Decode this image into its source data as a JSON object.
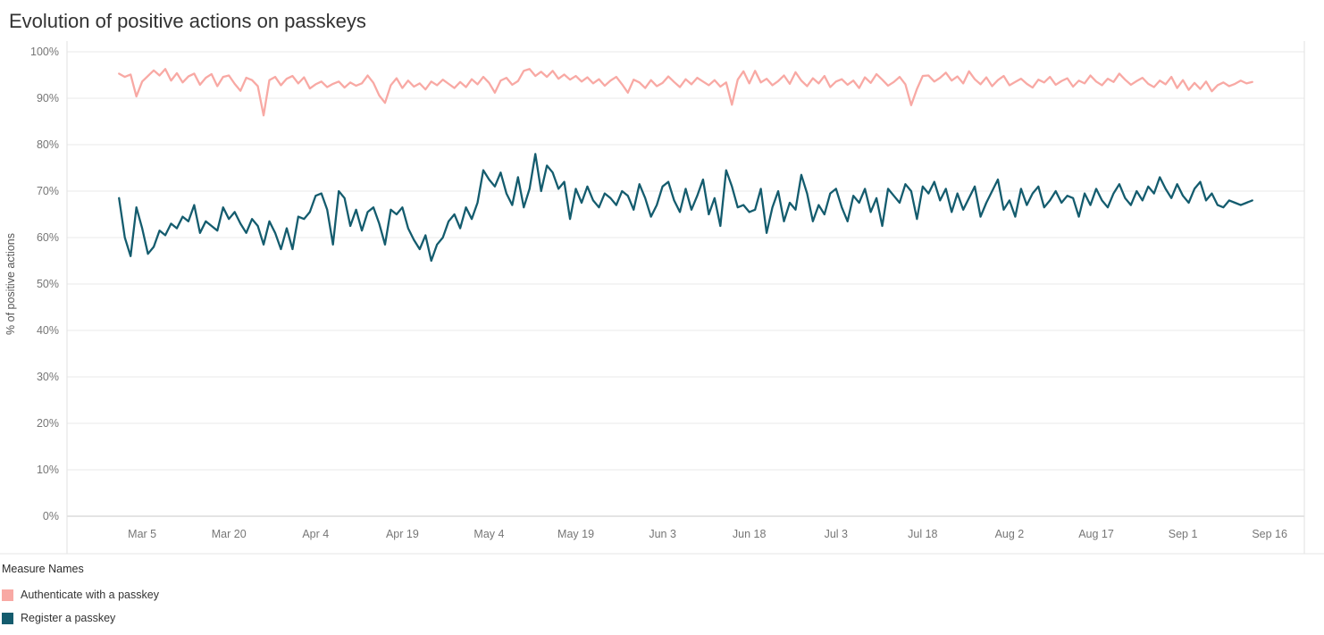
{
  "page": {
    "title": "Evolution of positive actions on passkeys"
  },
  "legend": {
    "title": "Measure Names",
    "items": [
      {
        "label": "Authenticate with a passkey",
        "color": "#f8a9a4"
      },
      {
        "label": "Register a passkey",
        "color": "#145c6e"
      }
    ]
  },
  "chart_data": {
    "type": "line",
    "title": "Evolution of positive actions on passkeys",
    "xlabel": "",
    "ylabel": "% of positive actions",
    "ylim": [
      0,
      100
    ],
    "y_tick_step": 10,
    "y_tick_suffix": "%",
    "grid": "horizontal",
    "legend_position": "bottom-left",
    "x_unit": "daily points, day index 0 = Mar 1",
    "x_ticks": [
      {
        "day": 4,
        "label": "Mar 5"
      },
      {
        "day": 19,
        "label": "Mar 20"
      },
      {
        "day": 34,
        "label": "Apr 4"
      },
      {
        "day": 49,
        "label": "Apr 19"
      },
      {
        "day": 64,
        "label": "May 4"
      },
      {
        "day": 79,
        "label": "May 19"
      },
      {
        "day": 94,
        "label": "Jun 3"
      },
      {
        "day": 109,
        "label": "Jun 18"
      },
      {
        "day": 124,
        "label": "Jul 3"
      },
      {
        "day": 139,
        "label": "Jul 18"
      },
      {
        "day": 154,
        "label": "Aug 2"
      },
      {
        "day": 169,
        "label": "Aug 17"
      },
      {
        "day": 184,
        "label": "Sep 1"
      },
      {
        "day": 199,
        "label": "Sep 16"
      }
    ],
    "series": [
      {
        "name": "Authenticate with a passkey",
        "color": "#f8a9a4",
        "start_day": 0,
        "values": [
          95.3,
          94.6,
          95.1,
          90.4,
          93.6,
          94.8,
          96.0,
          94.9,
          96.3,
          93.8,
          95.4,
          93.4,
          94.7,
          95.3,
          92.9,
          94.4,
          95.2,
          92.6,
          94.6,
          94.9,
          93.1,
          91.6,
          94.4,
          93.9,
          92.6,
          86.3,
          93.9,
          94.6,
          92.8,
          94.2,
          94.8,
          93.2,
          94.5,
          92.1,
          93.0,
          93.6,
          92.4,
          93.1,
          93.6,
          92.3,
          93.4,
          92.7,
          93.2,
          94.9,
          93.3,
          90.6,
          89.0,
          92.8,
          94.3,
          92.2,
          93.8,
          92.5,
          93.2,
          91.9,
          93.6,
          92.8,
          94.0,
          93.1,
          92.2,
          93.5,
          92.4,
          94.1,
          93.0,
          94.6,
          93.3,
          91.2,
          93.8,
          94.4,
          92.9,
          93.7,
          95.9,
          96.3,
          94.8,
          95.7,
          94.6,
          95.9,
          94.2,
          95.1,
          94.0,
          94.8,
          93.6,
          94.5,
          93.2,
          94.1,
          92.7,
          93.8,
          94.6,
          93.0,
          91.2,
          94.0,
          93.4,
          92.2,
          93.9,
          92.6,
          93.3,
          94.7,
          93.5,
          92.4,
          94.1,
          93.0,
          94.4,
          93.6,
          92.8,
          93.9,
          92.5,
          93.4,
          88.6,
          94.0,
          95.8,
          93.2,
          95.9,
          93.4,
          94.2,
          92.8,
          93.7,
          94.9,
          93.1,
          95.6,
          93.8,
          92.6,
          94.3,
          93.2,
          94.8,
          92.4,
          93.6,
          94.1,
          92.9,
          93.8,
          92.2,
          94.5,
          93.3,
          95.2,
          94.0,
          92.7,
          93.5,
          94.6,
          93.0,
          88.5,
          92.0,
          94.8,
          94.9,
          93.6,
          94.4,
          95.5,
          93.8,
          94.7,
          93.2,
          95.8,
          94.1,
          93.0,
          94.5,
          92.6,
          93.9,
          94.8,
          92.8,
          93.5,
          94.2,
          93.1,
          92.3,
          94.0,
          93.4,
          94.6,
          92.9,
          93.7,
          94.3,
          92.5,
          93.8,
          93.2,
          94.9,
          93.6,
          92.8,
          94.2,
          93.5,
          95.3,
          94.0,
          92.9,
          93.7,
          94.4,
          93.1,
          92.4,
          93.8,
          93.0,
          94.6,
          92.2,
          93.9,
          91.8,
          93.3,
          92.0,
          93.6,
          91.5,
          92.8,
          93.4,
          92.6,
          93.1,
          93.8,
          93.2,
          93.5
        ]
      },
      {
        "name": "Register a passkey",
        "color": "#145c6e",
        "start_day": 0,
        "values": [
          68.5,
          60.0,
          56.0,
          66.5,
          62.0,
          56.5,
          58.0,
          61.5,
          60.5,
          63.0,
          62.0,
          64.5,
          63.5,
          67.0,
          61.0,
          63.5,
          62.5,
          61.5,
          66.5,
          64.0,
          65.5,
          63.0,
          61.0,
          64.0,
          62.5,
          58.5,
          63.5,
          61.0,
          57.5,
          62.0,
          57.5,
          64.5,
          64.0,
          65.5,
          69.0,
          69.5,
          66.0,
          58.5,
          70.0,
          68.5,
          62.5,
          66.0,
          61.5,
          65.5,
          66.5,
          63.0,
          58.5,
          66.0,
          65.0,
          66.5,
          62.0,
          59.5,
          57.5,
          60.5,
          55.0,
          58.5,
          60.0,
          63.5,
          65.0,
          62.0,
          66.5,
          64.0,
          67.5,
          74.5,
          72.5,
          71.0,
          74.0,
          69.5,
          67.0,
          73.0,
          66.5,
          70.5,
          78.0,
          70.0,
          75.5,
          74.0,
          70.5,
          72.0,
          64.0,
          70.5,
          67.5,
          71.0,
          68.0,
          66.5,
          69.5,
          68.5,
          67.0,
          70.0,
          69.0,
          66.0,
          71.5,
          68.5,
          64.5,
          67.0,
          71.0,
          72.0,
          68.0,
          65.5,
          70.5,
          66.0,
          69.0,
          72.5,
          65.0,
          68.5,
          62.5,
          74.5,
          71.0,
          66.5,
          67.0,
          65.5,
          66.0,
          70.5,
          61.0,
          66.5,
          70.0,
          63.5,
          67.5,
          66.0,
          73.5,
          69.5,
          63.5,
          67.0,
          65.0,
          69.5,
          70.5,
          66.5,
          63.5,
          69.0,
          67.5,
          70.5,
          65.5,
          68.5,
          62.5,
          70.5,
          69.0,
          67.5,
          71.5,
          70.0,
          64.0,
          71.0,
          69.5,
          72.0,
          68.0,
          70.5,
          65.5,
          69.5,
          66.0,
          68.5,
          71.0,
          64.5,
          67.5,
          70.0,
          72.5,
          66.0,
          68.0,
          64.5,
          70.5,
          67.0,
          69.5,
          71.0,
          66.5,
          68.0,
          70.0,
          67.5,
          69.0,
          68.5,
          64.5,
          69.5,
          67.0,
          70.5,
          68.0,
          66.5,
          69.5,
          71.5,
          68.5,
          67.0,
          70.0,
          68.0,
          71.0,
          69.5,
          73.0,
          70.5,
          68.5,
          71.5,
          69.0,
          67.5,
          70.5,
          72.0,
          68.0,
          69.5,
          67.0,
          66.5,
          68.0,
          67.5,
          67.0,
          67.5,
          68.0
        ]
      }
    ]
  }
}
